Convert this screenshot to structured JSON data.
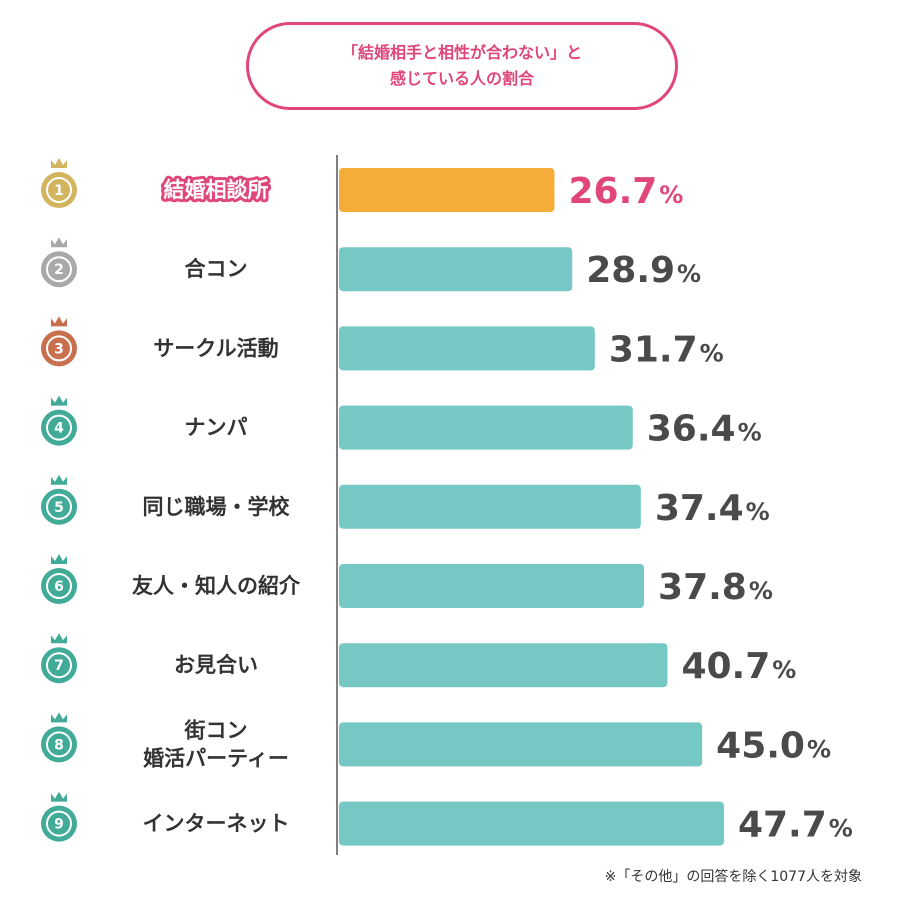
{
  "title": {
    "line1": "「結婚相手と相性が合わない」と",
    "line2": "感じている人の割合"
  },
  "footnote": "※「その他」の回答を除く1077人を対象",
  "colors": {
    "accent": "#e0467a",
    "highlight_bar": "#f5ad3a",
    "bar": "#76c8c5",
    "value_text": "#4a4a4a",
    "rank_gold": "#d2b55e",
    "rank_silver": "#a9a9a9",
    "rank_bronze": "#c8704e",
    "rank_other": "#41ab98"
  },
  "chart_data": {
    "type": "bar",
    "orientation": "horizontal",
    "unit": "%",
    "xlim": [
      0,
      50
    ],
    "grid": false,
    "categories": [
      [
        "結婚相談所"
      ],
      [
        "合コン"
      ],
      [
        "サークル活動"
      ],
      [
        "ナンパ"
      ],
      [
        "同じ職場・学校"
      ],
      [
        "友人・知人の紹介"
      ],
      [
        "お見合い"
      ],
      [
        "街コン",
        "婚活パーティー"
      ],
      [
        "インターネット"
      ]
    ],
    "ranks": [
      "1",
      "2",
      "3",
      "4",
      "5",
      "6",
      "7",
      "8",
      "9"
    ],
    "values": [
      26.7,
      28.9,
      31.7,
      36.4,
      37.4,
      37.8,
      40.7,
      45.0,
      47.7
    ],
    "value_labels": [
      "26.7",
      "28.9",
      "31.7",
      "36.4",
      "37.4",
      "37.8",
      "40.7",
      "45.0",
      "47.7"
    ],
    "highlight_index": 0
  }
}
